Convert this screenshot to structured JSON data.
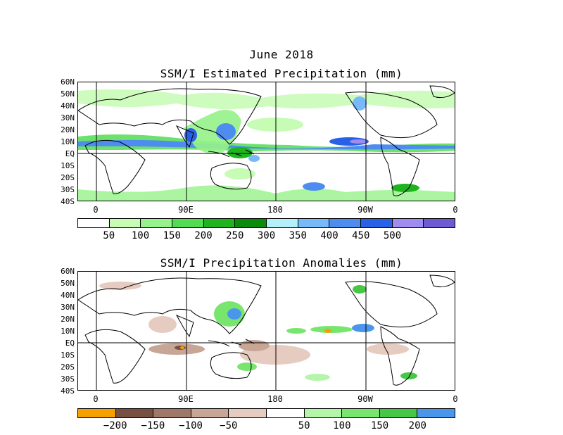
{
  "month": "June 2018",
  "panel1": {
    "title": "SSM/I Estimated Precipitation (mm)",
    "lat_labels": [
      "60N",
      "50N",
      "40N",
      "30N",
      "20N",
      "10N",
      "EQ",
      "10S",
      "20S",
      "30S",
      "40S"
    ],
    "lon_labels": [
      "0",
      "90E",
      "180",
      "90W",
      "0"
    ],
    "colorbar": {
      "colors": [
        "#ffffff",
        "#c6fcb4",
        "#96f28a",
        "#52dc52",
        "#1eb41e",
        "#0a8c0a",
        "#b4f0fa",
        "#78b9fa",
        "#4e8cf0",
        "#2860e6",
        "#a08cf0",
        "#6e5ad2"
      ],
      "labels": [
        "50",
        "100",
        "150",
        "200",
        "250",
        "300",
        "350",
        "400",
        "450",
        "500"
      ]
    }
  },
  "panel2": {
    "title": "SSM/I Precipitation Anomalies (mm)",
    "lat_labels": [
      "60N",
      "50N",
      "40N",
      "30N",
      "20N",
      "10N",
      "EQ",
      "10S",
      "20S",
      "30S",
      "40S"
    ],
    "lon_labels": [
      "0",
      "90E",
      "180",
      "90W",
      "0"
    ],
    "colorbar": {
      "colors": [
        "#f5a000",
        "#785040",
        "#a07868",
        "#c8a696",
        "#e6ccc0",
        "#ffffff",
        "#b4f5aa",
        "#78e66e",
        "#46c846",
        "#4a96eb"
      ],
      "labels": [
        "−200",
        "−150",
        "−100",
        "−50",
        "50",
        "100",
        "150",
        "200"
      ]
    }
  }
}
